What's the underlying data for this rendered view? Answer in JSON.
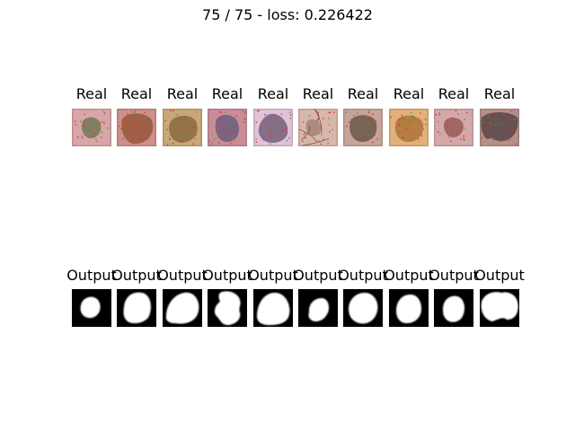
{
  "title": "75 / 75 - loss: 0.226422",
  "real_label": "Real",
  "output_label": "Output",
  "real_images": [
    {
      "name": "real-image-1",
      "bg": "#d8a6a8",
      "lesion": "#7a7a5a"
    },
    {
      "name": "real-image-2",
      "bg": "#cf8f8a",
      "lesion": "#9a5a3e"
    },
    {
      "name": "real-image-3",
      "bg": "#c9a77a",
      "lesion": "#8e6e42"
    },
    {
      "name": "real-image-4",
      "bg": "#c88d97",
      "lesion": "#735f7e"
    },
    {
      "name": "real-image-5",
      "bg": "#e2c2d8",
      "lesion": "#7c6480"
    },
    {
      "name": "real-image-6",
      "bg": "#d9b6aa",
      "lesion": "#a88478"
    },
    {
      "name": "real-image-7",
      "bg": "#c7a39a",
      "lesion": "#6f5c4f"
    },
    {
      "name": "real-image-8",
      "bg": "#e2b07c",
      "lesion": "#b0783c"
    },
    {
      "name": "real-image-9",
      "bg": "#d4a7a8",
      "lesion": "#9a5f5c"
    },
    {
      "name": "real-image-10",
      "bg": "#b88f86",
      "lesion": "#5e4a4c"
    }
  ],
  "output_masks": [
    {
      "name": "output-mask-1"
    },
    {
      "name": "output-mask-2"
    },
    {
      "name": "output-mask-3"
    },
    {
      "name": "output-mask-4"
    },
    {
      "name": "output-mask-5"
    },
    {
      "name": "output-mask-6"
    },
    {
      "name": "output-mask-7"
    },
    {
      "name": "output-mask-8"
    },
    {
      "name": "output-mask-9"
    },
    {
      "name": "output-mask-10"
    }
  ]
}
